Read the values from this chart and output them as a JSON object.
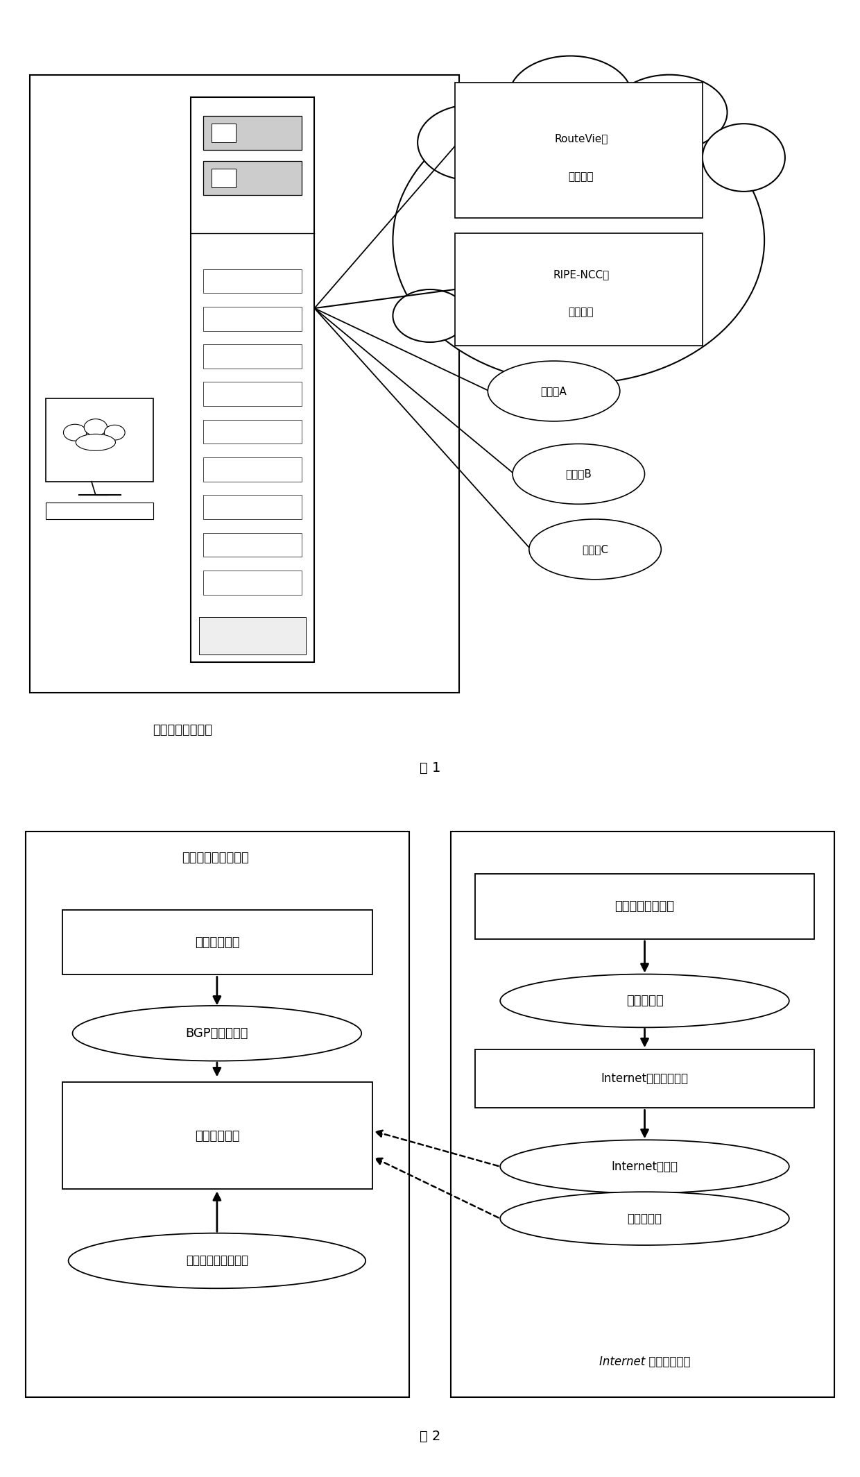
{
  "fig1": {
    "title": "图 1",
    "system_label": "路由异常检测系统",
    "routeview_line1": "RouteVie路",
    "routeview_line2": "由服务器",
    "ripencc_line1": "RIPE-NCC路",
    "ripencc_line2": "由服务器",
    "monitor_a": "监测点A",
    "monitor_b": "监测点B",
    "monitor_c": "监测点C"
  },
  "fig2": {
    "title": "图 2",
    "left_section_label": "异常检测与报告部分",
    "right_section_label": "Internet 模型构造部分",
    "box1_left": "异常报告模块",
    "ellipse1_left": "BGP异常数据库",
    "box2_left": "异常检测模块",
    "ellipse2_left": "被监测网络路由信息",
    "box1_right": "路由数据采集模块",
    "ellipse1_right": "路由数据库",
    "box2_right": "Internet模型生成模块",
    "ellipse2_right": "Internet模型库",
    "ellipse3_right": "基本信息库"
  },
  "colors": {
    "background": "#ffffff",
    "line": "#000000",
    "box_fill": "#ffffff",
    "text": "#000000"
  }
}
